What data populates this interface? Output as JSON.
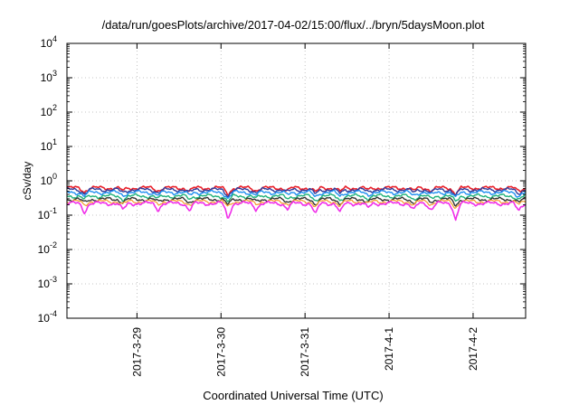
{
  "chart_data": {
    "type": "line",
    "title": "/data/run/goesPlots/archive/2017-04-02/15:00/flux/../bryn/5daysMoon.plot",
    "xlabel": "Coordinated Universal Time (UTC)",
    "ylabel": "cSv/day",
    "y_scale": "log",
    "ylim": [
      0.0001,
      10000
    ],
    "y_ticks": [
      {
        "value": 0.0001,
        "base": "10",
        "exp": "-4"
      },
      {
        "value": 0.001,
        "base": "10",
        "exp": "-3"
      },
      {
        "value": 0.01,
        "base": "10",
        "exp": "-2"
      },
      {
        "value": 0.1,
        "base": "10",
        "exp": "-1"
      },
      {
        "value": 1,
        "base": "10",
        "exp": "0"
      },
      {
        "value": 10,
        "base": "10",
        "exp": "1"
      },
      {
        "value": 100,
        "base": "10",
        "exp": "2"
      },
      {
        "value": 1000,
        "base": "10",
        "exp": "3"
      },
      {
        "value": 10000,
        "base": "10",
        "exp": "4"
      }
    ],
    "xlim": [
      "2017-03-28T04:00",
      "2017-04-02T15:00"
    ],
    "x_ticks": [
      {
        "value": "2017-03-29T00:00",
        "label": "2017-3-29"
      },
      {
        "value": "2017-03-30T00:00",
        "label": "2017-3-30"
      },
      {
        "value": "2017-03-31T00:00",
        "label": "2017-3-31"
      },
      {
        "value": "2017-04-01T00:00",
        "label": "2017-4-1"
      },
      {
        "value": "2017-04-02T00:00",
        "label": "2017-4-2"
      }
    ],
    "grid": true,
    "dips": [
      {
        "x": "2017-03-28T09:00",
        "depth": 0.65
      },
      {
        "x": "2017-03-28T20:00",
        "depth": 0.55
      },
      {
        "x": "2017-03-29T06:00",
        "depth": 0.5
      },
      {
        "x": "2017-03-29T15:00",
        "depth": 0.55
      },
      {
        "x": "2017-03-30T02:00",
        "depth": 1.0
      },
      {
        "x": "2017-03-30T10:00",
        "depth": 0.45
      },
      {
        "x": "2017-03-30T19:00",
        "depth": 0.45
      },
      {
        "x": "2017-03-31T03:00",
        "depth": 0.8
      },
      {
        "x": "2017-03-31T10:00",
        "depth": 0.7
      },
      {
        "x": "2017-03-31T18:00",
        "depth": 0.4
      },
      {
        "x": "2017-04-01T07:00",
        "depth": 0.55
      },
      {
        "x": "2017-04-01T12:00",
        "depth": 0.5
      },
      {
        "x": "2017-04-01T19:00",
        "depth": 1.0
      },
      {
        "x": "2017-04-02T13:00",
        "depth": 0.6
      }
    ],
    "series": [
      {
        "color": "#e8212b",
        "level": 0.62,
        "width": 1.6
      },
      {
        "color": "#303a9a",
        "level": 0.55,
        "width": 1.4
      },
      {
        "color": "#1f8ff0",
        "level": 0.46,
        "width": 1.4
      },
      {
        "color": "#20b27a",
        "level": 0.36,
        "width": 1.4
      },
      {
        "color": "#333333",
        "level": 0.29,
        "width": 1.4
      },
      {
        "color": "#f39b2b",
        "level": 0.25,
        "width": 1.2
      },
      {
        "color": "#f02ee9",
        "level": 0.22,
        "width": 1.6
      }
    ]
  }
}
